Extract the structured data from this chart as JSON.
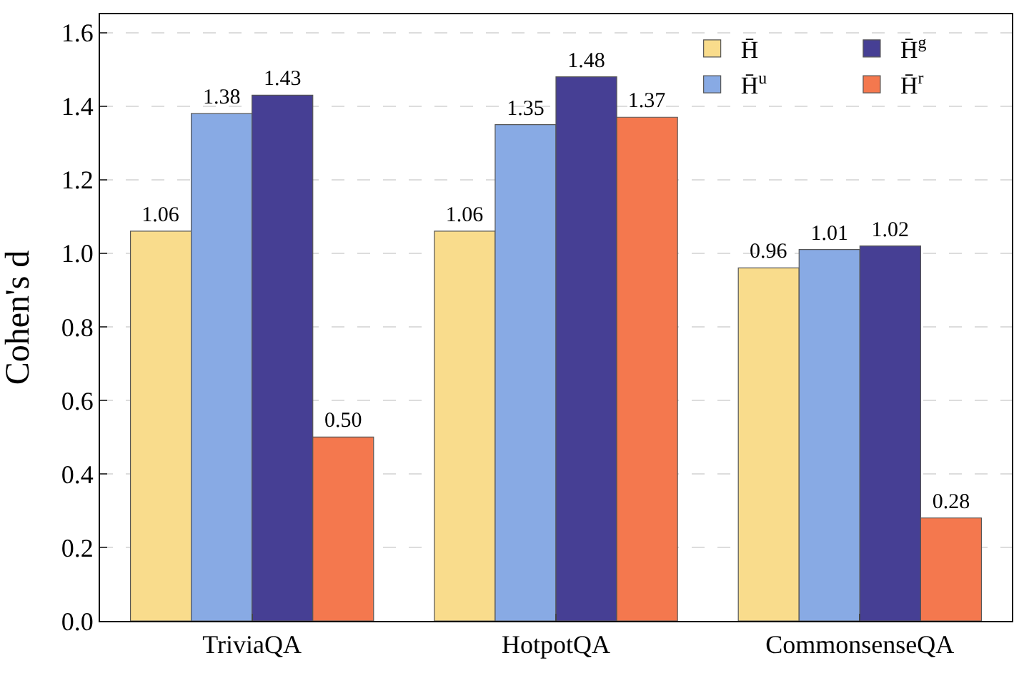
{
  "chart_data": {
    "type": "bar",
    "ylabel": "Cohen's d",
    "categories": [
      "TriviaQA",
      "HotpotQA",
      "CommonsenseQA"
    ],
    "series": [
      {
        "name": "H̄",
        "color": "#f9dc8c",
        "values": [
          1.06,
          1.06,
          0.96
        ]
      },
      {
        "name": "H̄$^{u}$",
        "color": "#88aae4",
        "values": [
          1.38,
          1.35,
          1.01
        ]
      },
      {
        "name": "H̄$^{g}$",
        "color": "#463f94",
        "values": [
          1.43,
          1.48,
          1.02
        ]
      },
      {
        "name": "H̄$^{r}$",
        "color": "#f4784e",
        "values": [
          0.5,
          1.37,
          0.28
        ]
      }
    ],
    "value_labels": [
      [
        "1.06",
        "1.06",
        "0.96"
      ],
      [
        "1.38",
        "1.35",
        "1.01"
      ],
      [
        "1.43",
        "1.48",
        "1.02"
      ],
      [
        "0.50",
        "1.37",
        "0.28"
      ]
    ],
    "ylim": [
      0,
      1.65
    ],
    "yticks": [
      {
        "value": 0,
        "label": "0.0"
      },
      0.2,
      0.4,
      0.6,
      0.8,
      {
        "value": 1,
        "label": "1.0"
      },
      1.2,
      1.4,
      1.6
    ],
    "grid": "y",
    "legend": "top right"
  }
}
